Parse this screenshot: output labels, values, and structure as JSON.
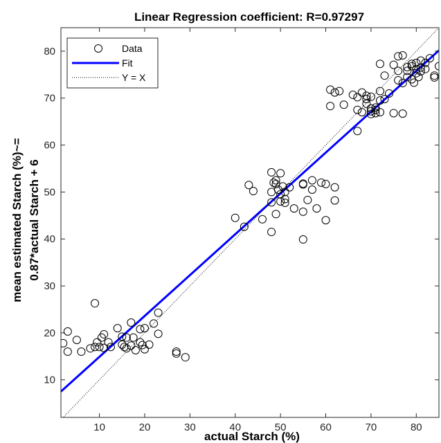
{
  "chart_data": {
    "type": "scatter",
    "title": "Linear Regression coefficient: R=0.97297",
    "xlabel": "actual Starch (%)",
    "ylabel_lines": [
      "mean estimated Starch (%)~=",
      "0.87*actual Starch + 6"
    ],
    "xlim": [
      1.5,
      85
    ],
    "ylim": [
      2,
      85
    ],
    "xticks": [
      10,
      20,
      30,
      40,
      50,
      60,
      70,
      80
    ],
    "yticks": [
      10,
      20,
      30,
      40,
      50,
      60,
      70,
      80
    ],
    "grid": false,
    "legend_position": "top-left",
    "legend": [
      {
        "label": "Data",
        "style": "marker"
      },
      {
        "label": "Fit",
        "style": "solid"
      },
      {
        "label": "Y = X",
        "style": "dotted"
      }
    ],
    "series": [
      {
        "name": "Data",
        "kind": "scatter",
        "marker": "open-circle",
        "color": "#000000",
        "points": [
          [
            2,
            17.8
          ],
          [
            3,
            20.3
          ],
          [
            3,
            16
          ],
          [
            5,
            18.5
          ],
          [
            6,
            16
          ],
          [
            8,
            16.7
          ],
          [
            9,
            17
          ],
          [
            9,
            26.3
          ],
          [
            9.5,
            18
          ],
          [
            10,
            17
          ],
          [
            10.5,
            19
          ],
          [
            11,
            19.7
          ],
          [
            11,
            16.8
          ],
          [
            12,
            18
          ],
          [
            12.5,
            17
          ],
          [
            14,
            21
          ],
          [
            15,
            17.5
          ],
          [
            15,
            19.2
          ],
          [
            15.5,
            17
          ],
          [
            16,
            16.7
          ],
          [
            16,
            19
          ],
          [
            17,
            22.2
          ],
          [
            17,
            17.3
          ],
          [
            17.5,
            19
          ],
          [
            18,
            16.3
          ],
          [
            19,
            18
          ],
          [
            19,
            20.8
          ],
          [
            19.5,
            17.4
          ],
          [
            20,
            21
          ],
          [
            20,
            16.5
          ],
          [
            21,
            17.5
          ],
          [
            22,
            22
          ],
          [
            23,
            24.3
          ],
          [
            23,
            19.8
          ],
          [
            27,
            15.6
          ],
          [
            27,
            16
          ],
          [
            29,
            14.8
          ],
          [
            40,
            44.5
          ],
          [
            42,
            42.6
          ],
          [
            43,
            51.5
          ],
          [
            44,
            50.2
          ],
          [
            46,
            44.2
          ],
          [
            48,
            54.2
          ],
          [
            48,
            50
          ],
          [
            48,
            47.8
          ],
          [
            48,
            41.5
          ],
          [
            48.5,
            52
          ],
          [
            49,
            52.5
          ],
          [
            49,
            51.7
          ],
          [
            49,
            45.3
          ],
          [
            49.5,
            50.5
          ],
          [
            50,
            49.5
          ],
          [
            50,
            48
          ],
          [
            50,
            54
          ],
          [
            50.5,
            51.2
          ],
          [
            51,
            47.7
          ],
          [
            51,
            48.5
          ],
          [
            51,
            50
          ],
          [
            52,
            51
          ],
          [
            53,
            46.5
          ],
          [
            55,
            51.8
          ],
          [
            55,
            51.6
          ],
          [
            55,
            45.8
          ],
          [
            55,
            39.9
          ],
          [
            56,
            48.3
          ],
          [
            57,
            52.5
          ],
          [
            57,
            50.5
          ],
          [
            58,
            46.5
          ],
          [
            59,
            52
          ],
          [
            60,
            51.7
          ],
          [
            60,
            44
          ],
          [
            62,
            51
          ],
          [
            62,
            48.2
          ],
          [
            61,
            68.3
          ],
          [
            61,
            71.8
          ],
          [
            62,
            71.2
          ],
          [
            63,
            71.5
          ],
          [
            64,
            68.6
          ],
          [
            66,
            70.7
          ],
          [
            67,
            70.2
          ],
          [
            67,
            67.5
          ],
          [
            67,
            63
          ],
          [
            68,
            71.2
          ],
          [
            68,
            67
          ],
          [
            69,
            68.8
          ],
          [
            69,
            70.5
          ],
          [
            69,
            69.8
          ],
          [
            70,
            70.3
          ],
          [
            70,
            67.8
          ],
          [
            70,
            67.2
          ],
          [
            70,
            66.6
          ],
          [
            71,
            68
          ],
          [
            71,
            67.5
          ],
          [
            71,
            66.8
          ],
          [
            72,
            71.5
          ],
          [
            72,
            69.5
          ],
          [
            72,
            67
          ],
          [
            73,
            69.8
          ],
          [
            74,
            71
          ],
          [
            75,
            66.8
          ],
          [
            75,
            77.1
          ],
          [
            76,
            75.8
          ],
          [
            76,
            78.9
          ],
          [
            77,
            79.1
          ],
          [
            77,
            66.7
          ],
          [
            77,
            73.2
          ],
          [
            78,
            74.5
          ],
          [
            78,
            75.8
          ],
          [
            78,
            76.6
          ],
          [
            79,
            74
          ],
          [
            79,
            77.3
          ],
          [
            79.5,
            73.3
          ],
          [
            80,
            77.5
          ],
          [
            80,
            75.3
          ],
          [
            80,
            76.2
          ],
          [
            80.5,
            74.5
          ],
          [
            81,
            75.7
          ],
          [
            81,
            78
          ],
          [
            82,
            77.5
          ],
          [
            82,
            76.2
          ],
          [
            83,
            78.5
          ],
          [
            84,
            74.4
          ],
          [
            84,
            74.8
          ],
          [
            85,
            76.8
          ],
          [
            72,
            77.3
          ],
          [
            73,
            74.8
          ],
          [
            76,
            73.8
          ],
          [
            79,
            76.8
          ],
          [
            81,
            76.5
          ]
        ]
      },
      {
        "name": "Fit",
        "kind": "line",
        "color": "#0000ff",
        "slope": 0.87,
        "intercept": 6.2
      },
      {
        "name": "Y = X",
        "kind": "line",
        "color": "#000000",
        "dash": "dotted",
        "slope": 1,
        "intercept": 0
      }
    ]
  }
}
